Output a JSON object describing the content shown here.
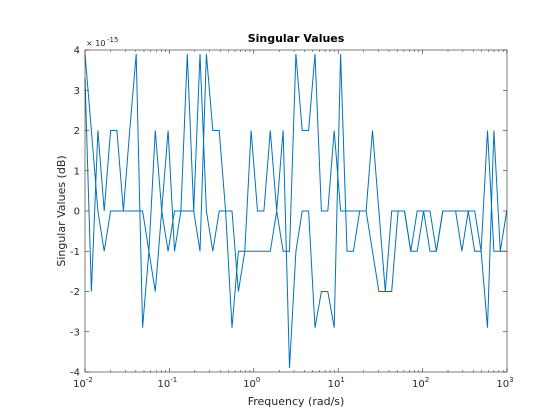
{
  "chart_data": {
    "type": "line",
    "title": "Singular Values",
    "xlabel": "Frequency (rad/s)",
    "ylabel": "Singular Values (dB)",
    "xscale": "log",
    "xlim": [
      0.01,
      1000
    ],
    "ylim": [
      -4,
      4
    ],
    "y_exponent_label": "× 10",
    "y_exponent_power": "-15",
    "x_ticks": [
      {
        "value": 0.01,
        "base": "10",
        "exp": "-2"
      },
      {
        "value": 0.1,
        "base": "10",
        "exp": "-1"
      },
      {
        "value": 1,
        "base": "10",
        "exp": "0"
      },
      {
        "value": 10,
        "base": "10",
        "exp": "1"
      },
      {
        "value": 100,
        "base": "10",
        "exp": "2"
      },
      {
        "value": 1000,
        "base": "10",
        "exp": "3"
      }
    ],
    "y_ticks": [
      "-4",
      "-3",
      "-2",
      "-1",
      "0",
      "1",
      "2",
      "3",
      "4"
    ],
    "line_color": "#0072BD",
    "series": [
      {
        "x": [
          0.01,
          0.0119,
          0.0142,
          0.0169,
          0.0201,
          0.0239,
          0.0285,
          0.0339,
          0.0404,
          0.0481,
          0.0572,
          0.0681,
          0.0811,
          0.0965,
          0.1149,
          0.1368,
          0.1628,
          0.1938,
          0.2307,
          0.2746,
          0.3269,
          0.3891,
          0.4632,
          0.5513,
          0.6563,
          0.7813,
          0.93,
          1.107,
          1.318,
          1.569,
          1.868,
          2.223,
          2.646,
          3.15,
          3.75,
          4.464,
          5.313,
          6.325,
          7.529,
          8.962,
          10.67,
          12.7,
          15.12,
          18.0,
          21.42,
          25.5,
          30.35,
          36.13,
          43.01,
          51.2,
          60.95,
          72.55,
          86.36,
          102.8,
          122.4,
          145.7,
          173.4,
          206.4,
          245.7,
          292.5,
          348.2,
          414.5,
          493.4,
          587.3,
          699.2,
          832.3,
          990.8
        ],
        "values": [
          3.9,
          2.0,
          0.0,
          -1.0,
          0.0,
          0.0,
          0.0,
          0.0,
          0.0,
          0.0,
          -1.0,
          2.0,
          0.0,
          -1.0,
          0.0,
          0.0,
          3.9,
          0.0,
          -1.0,
          3.9,
          2.0,
          2.0,
          0.0,
          0.0,
          -2.0,
          -1.0,
          -1.0,
          -1.0,
          -1.0,
          -1.0,
          0.0,
          -1.0,
          -1.0,
          3.9,
          2.0,
          2.0,
          3.9,
          0.0,
          0.0,
          2.0,
          0.0,
          0.0,
          0.0,
          0.0,
          0.0,
          -1.0,
          -2.0,
          -2.0,
          0.0,
          0.0,
          0.0,
          -1.0,
          0.0,
          0.0,
          0.0,
          -1.0,
          0.0,
          0.0,
          0.0,
          0.0,
          0.0,
          -1.0,
          -1.0,
          2.0,
          -1.0,
          -1.0,
          -1.0
        ]
      },
      {
        "x": [
          0.01,
          0.0119,
          0.0142,
          0.0169,
          0.0201,
          0.0239,
          0.0285,
          0.0339,
          0.0404,
          0.0481,
          0.0572,
          0.0681,
          0.0811,
          0.0965,
          0.1149,
          0.1368,
          0.1628,
          0.1938,
          0.2307,
          0.2746,
          0.3269,
          0.3891,
          0.4632,
          0.5513,
          0.6563,
          0.7813,
          0.93,
          1.107,
          1.318,
          1.569,
          1.868,
          2.223,
          2.646,
          3.15,
          3.75,
          4.464,
          5.313,
          6.325,
          7.529,
          8.962,
          10.67,
          12.7,
          15.12,
          18.0,
          21.42,
          25.5,
          30.35,
          36.13,
          43.01,
          51.2,
          60.95,
          72.55,
          86.36,
          102.8,
          122.4,
          145.7,
          173.4,
          206.4,
          245.7,
          292.5,
          348.2,
          414.5,
          493.4,
          587.3,
          699.2,
          832.3,
          990.8
        ],
        "values": [
          3.3,
          -2.0,
          2.0,
          0.0,
          2.0,
          2.0,
          0.0,
          2.0,
          3.9,
          -2.9,
          -1.0,
          -2.0,
          0.0,
          2.0,
          -1.0,
          0.0,
          0.0,
          0.0,
          3.9,
          0.0,
          -1.0,
          0.0,
          0.0,
          -2.9,
          -1.0,
          -1.0,
          2.0,
          0.0,
          0.0,
          2.0,
          0.0,
          2.0,
          -3.9,
          -1.0,
          0.0,
          0.0,
          -2.9,
          -2.0,
          -2.0,
          -2.9,
          3.9,
          -1.0,
          -1.0,
          0.0,
          0.0,
          2.0,
          0.0,
          -2.0,
          -2.0,
          0.0,
          0.0,
          -1.0,
          -1.0,
          0.0,
          -1.0,
          -1.0,
          0.0,
          0.0,
          0.0,
          -1.0,
          0.0,
          0.0,
          -1.0,
          -2.9,
          2.0,
          -1.0,
          0.0
        ]
      }
    ]
  }
}
